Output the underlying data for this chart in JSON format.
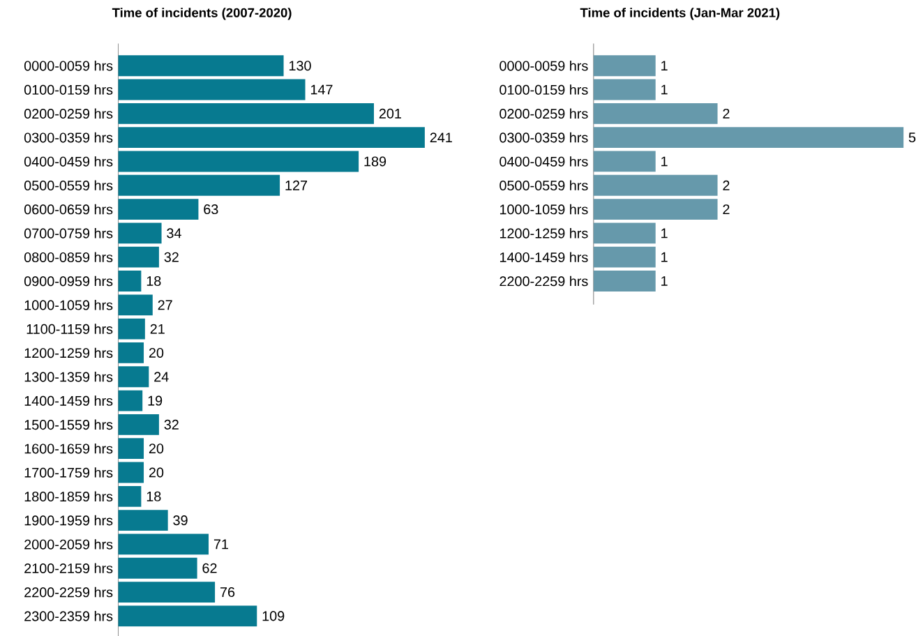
{
  "chart_data": [
    {
      "type": "bar",
      "orientation": "horizontal",
      "title": "Time of incidents (2007-2020)",
      "categories": [
        "0000-0059 hrs",
        "0100-0159 hrs",
        "0200-0259 hrs",
        "0300-0359 hrs",
        "0400-0459 hrs",
        "0500-0559 hrs",
        "0600-0659 hrs",
        "0700-0759 hrs",
        "0800-0859 hrs",
        "0900-0959 hrs",
        "1000-1059 hrs",
        "1100-1159 hrs",
        "1200-1259 hrs",
        "1300-1359 hrs",
        "1400-1459 hrs",
        "1500-1559 hrs",
        "1600-1659 hrs",
        "1700-1759 hrs",
        "1800-1859 hrs",
        "1900-1959 hrs",
        "2000-2059 hrs",
        "2100-2159 hrs",
        "2200-2259 hrs",
        "2300-2359 hrs"
      ],
      "values": [
        130,
        147,
        201,
        241,
        189,
        127,
        63,
        34,
        32,
        18,
        27,
        21,
        20,
        24,
        19,
        32,
        20,
        20,
        18,
        39,
        71,
        62,
        76,
        109
      ],
      "color": "#077a90",
      "data_labels": true,
      "tick_labels": "y"
    },
    {
      "type": "bar",
      "orientation": "horizontal",
      "title": "Time of incidents (Jan-Mar 2021)",
      "categories": [
        "0000-0059 hrs",
        "0100-0159 hrs",
        "0200-0259 hrs",
        "0300-0359 hrs",
        "0400-0459 hrs",
        "0500-0559 hrs",
        "1000-1059 hrs",
        "1200-1259 hrs",
        "1400-1459 hrs",
        "2200-2259 hrs"
      ],
      "values": [
        1,
        1,
        2,
        5,
        1,
        2,
        2,
        1,
        1,
        1
      ],
      "color": "#6699ab",
      "data_labels": true,
      "tick_labels": "y"
    }
  ]
}
